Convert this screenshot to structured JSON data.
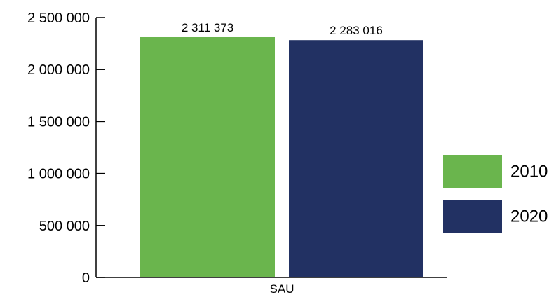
{
  "chart_data": {
    "type": "bar",
    "categories": [
      "SAU"
    ],
    "series": [
      {
        "name": "2010",
        "values": [
          2311373
        ],
        "value_labels": [
          "2 311 373"
        ],
        "color": "#6ab54d"
      },
      {
        "name": "2020",
        "values": [
          2283016
        ],
        "value_labels": [
          "2 283 016"
        ],
        "color": "#223163"
      }
    ],
    "ylim": [
      0,
      2500000
    ],
    "yticks": [
      0,
      500000,
      1000000,
      1500000,
      2000000,
      2500000
    ],
    "ytick_labels": [
      "0",
      "500 000",
      "1 000 000",
      "1 500 000",
      "2 000 000",
      "2 500 000"
    ],
    "title": "",
    "xlabel": "",
    "ylabel": "",
    "grid": false,
    "legend_position": "right"
  }
}
